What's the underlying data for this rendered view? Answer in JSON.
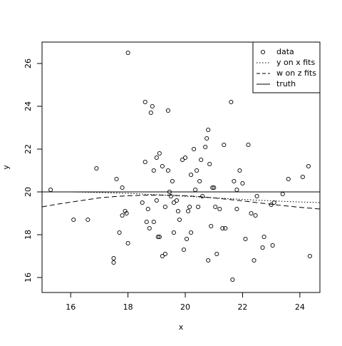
{
  "chart_data": {
    "type": "scatter",
    "xlabel": "x",
    "ylabel": "y",
    "xlim": [
      15.0,
      24.7
    ],
    "ylim": [
      15.3,
      27.0
    ],
    "x_ticks": [
      16,
      18,
      20,
      22,
      24
    ],
    "y_ticks": [
      16,
      18,
      20,
      22,
      24,
      26
    ],
    "grid": false,
    "legend_position": "top-right",
    "legend": [
      {
        "label": "data",
        "symbol": "circle"
      },
      {
        "label": "y on x fits",
        "symbol": "dotted-line"
      },
      {
        "label": "w on z fits",
        "symbol": "dashed-line"
      },
      {
        "label": "truth",
        "symbol": "solid-line"
      }
    ],
    "series": [
      {
        "name": "data",
        "style": "points",
        "points": [
          [
            15.3,
            20.1
          ],
          [
            16.1,
            18.7
          ],
          [
            16.6,
            18.7
          ],
          [
            16.9,
            21.1
          ],
          [
            17.5,
            16.9
          ],
          [
            17.5,
            16.7
          ],
          [
            17.6,
            20.6
          ],
          [
            17.7,
            18.1
          ],
          [
            17.8,
            18.9
          ],
          [
            17.8,
            20.2
          ],
          [
            17.9,
            19.1
          ],
          [
            17.95,
            19.0
          ],
          [
            18.0,
            17.6
          ],
          [
            18.0,
            26.5
          ],
          [
            18.5,
            19.5
          ],
          [
            18.6,
            24.2
          ],
          [
            18.6,
            21.4
          ],
          [
            18.65,
            18.6
          ],
          [
            18.7,
            19.2
          ],
          [
            18.75,
            18.3
          ],
          [
            18.8,
            23.7
          ],
          [
            18.85,
            24.0
          ],
          [
            18.9,
            18.6
          ],
          [
            18.9,
            21.0
          ],
          [
            19.0,
            19.6
          ],
          [
            19.0,
            21.6
          ],
          [
            19.05,
            17.9
          ],
          [
            19.1,
            21.8
          ],
          [
            19.1,
            17.9
          ],
          [
            19.2,
            21.2
          ],
          [
            19.2,
            17.0
          ],
          [
            19.3,
            19.3
          ],
          [
            19.3,
            17.1
          ],
          [
            19.4,
            21.0
          ],
          [
            19.4,
            23.8
          ],
          [
            19.45,
            20.0
          ],
          [
            19.5,
            19.8
          ],
          [
            19.55,
            20.5
          ],
          [
            19.6,
            19.5
          ],
          [
            19.6,
            18.1
          ],
          [
            19.7,
            19.6
          ],
          [
            19.75,
            19.1
          ],
          [
            19.8,
            18.7
          ],
          [
            19.9,
            21.5
          ],
          [
            19.95,
            17.3
          ],
          [
            20.0,
            21.6
          ],
          [
            20.05,
            17.8
          ],
          [
            20.1,
            19.1
          ],
          [
            20.15,
            19.3
          ],
          [
            20.2,
            20.8
          ],
          [
            20.2,
            18.1
          ],
          [
            20.3,
            22.0
          ],
          [
            20.35,
            20.1
          ],
          [
            20.4,
            21.0
          ],
          [
            20.45,
            19.3
          ],
          [
            20.5,
            20.5
          ],
          [
            20.55,
            21.5
          ],
          [
            20.6,
            19.8
          ],
          [
            20.7,
            22.1
          ],
          [
            20.75,
            22.5
          ],
          [
            20.8,
            22.9
          ],
          [
            20.8,
            16.8
          ],
          [
            20.85,
            21.3
          ],
          [
            20.9,
            18.4
          ],
          [
            20.95,
            20.2
          ],
          [
            21.0,
            20.2
          ],
          [
            21.05,
            19.3
          ],
          [
            21.1,
            17.1
          ],
          [
            21.2,
            19.2
          ],
          [
            21.3,
            18.3
          ],
          [
            21.35,
            22.2
          ],
          [
            21.4,
            18.3
          ],
          [
            21.6,
            24.2
          ],
          [
            21.65,
            15.9
          ],
          [
            21.7,
            20.5
          ],
          [
            21.8,
            19.2
          ],
          [
            21.8,
            20.1
          ],
          [
            21.9,
            21.0
          ],
          [
            22.0,
            20.4
          ],
          [
            22.1,
            17.8
          ],
          [
            22.2,
            22.2
          ],
          [
            22.3,
            19.0
          ],
          [
            22.4,
            16.8
          ],
          [
            22.45,
            18.9
          ],
          [
            22.5,
            19.8
          ],
          [
            22.7,
            17.4
          ],
          [
            22.75,
            17.9
          ],
          [
            23.0,
            19.4
          ],
          [
            23.05,
            17.5
          ],
          [
            23.1,
            19.5
          ],
          [
            23.4,
            19.9
          ],
          [
            23.6,
            20.6
          ],
          [
            24.1,
            20.7
          ],
          [
            24.3,
            21.2
          ],
          [
            24.35,
            17.0
          ]
        ]
      },
      {
        "name": "y on x fits",
        "style": "dotted",
        "points": [
          [
            16.0,
            20.0
          ],
          [
            17.0,
            19.97
          ],
          [
            18.0,
            19.93
          ],
          [
            19.0,
            19.87
          ],
          [
            20.0,
            19.8
          ],
          [
            21.0,
            19.72
          ],
          [
            22.0,
            19.65
          ],
          [
            23.0,
            19.58
          ],
          [
            24.0,
            19.53
          ],
          [
            24.7,
            19.5
          ]
        ]
      },
      {
        "name": "w on z fits",
        "style": "dashed",
        "points": [
          [
            15.0,
            19.3
          ],
          [
            15.5,
            19.42
          ],
          [
            16.0,
            19.52
          ],
          [
            16.5,
            19.62
          ],
          [
            17.0,
            19.72
          ],
          [
            17.5,
            19.78
          ],
          [
            18.0,
            19.82
          ],
          [
            18.5,
            19.84
          ],
          [
            19.0,
            19.85
          ],
          [
            19.5,
            19.84
          ],
          [
            20.0,
            19.82
          ],
          [
            20.5,
            19.78
          ],
          [
            21.0,
            19.72
          ],
          [
            21.5,
            19.65
          ],
          [
            22.0,
            19.58
          ],
          [
            22.5,
            19.5
          ],
          [
            23.0,
            19.42
          ],
          [
            23.5,
            19.35
          ],
          [
            24.0,
            19.28
          ],
          [
            24.7,
            19.2
          ]
        ]
      },
      {
        "name": "truth",
        "style": "solid",
        "points": [
          [
            15.0,
            20.0
          ],
          [
            24.7,
            20.0
          ]
        ]
      }
    ]
  }
}
